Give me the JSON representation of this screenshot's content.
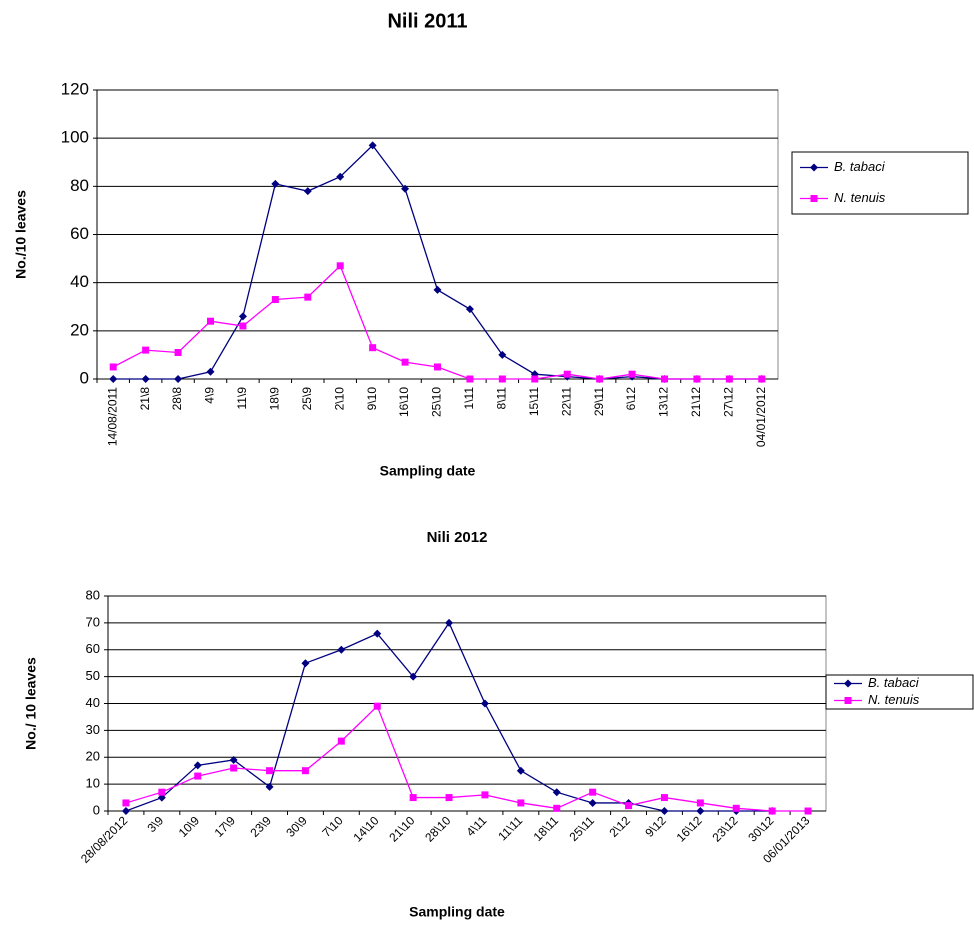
{
  "chart_data": [
    {
      "type": "line",
      "title": "Nili 2011",
      "x_label": "Sampling date",
      "y_label": "No./10 leaves",
      "categories": [
        "14/08/2011",
        "21\\8",
        "28\\8",
        "4\\9",
        "11\\9",
        "18\\9",
        "25\\9",
        "2\\10",
        "9\\10",
        "16\\10",
        "25\\10",
        "1\\11",
        "8\\11",
        "15\\11",
        "22\\11",
        "29\\11",
        "6\\12",
        "13\\12",
        "21\\12",
        "27\\12",
        "04/01/2012"
      ],
      "series": [
        {
          "name": "B. tabaci",
          "color": "#000080",
          "marker": "diamond",
          "values": [
            0,
            0,
            0,
            3,
            26,
            81,
            78,
            84,
            97,
            79,
            37,
            29,
            10,
            2,
            1,
            0,
            1,
            0,
            0,
            0,
            0
          ]
        },
        {
          "name": "N. tenuis",
          "color": "#ff00ff",
          "marker": "square",
          "values": [
            5,
            12,
            11,
            24,
            22,
            33,
            34,
            47,
            13,
            7,
            5,
            0,
            0,
            0,
            2,
            0,
            2,
            0,
            0,
            0,
            0
          ]
        }
      ],
      "ylim": [
        0,
        120
      ],
      "yticks": [
        0,
        20,
        40,
        60,
        80,
        100,
        120
      ],
      "grid": true,
      "legend": "right"
    },
    {
      "type": "line",
      "title": "Nili 2012",
      "x_label": "Sampling date",
      "y_label": "No./ 10 leaves",
      "categories": [
        "28/08/2012",
        "3\\9",
        "10\\9",
        "17\\9",
        "23\\9",
        "30\\9",
        "7\\10",
        "14\\10",
        "21\\10",
        "28\\10",
        "4\\11",
        "11\\11",
        "18\\11",
        "25\\11",
        "2\\12",
        "9\\12",
        "16\\12",
        "23\\12",
        "30\\12",
        "06/01/2013"
      ],
      "series": [
        {
          "name": "B. tabaci",
          "color": "#000080",
          "marker": "diamond",
          "values": [
            0,
            5,
            17,
            19,
            9,
            55,
            60,
            66,
            50,
            70,
            40,
            15,
            7,
            3,
            3,
            0,
            0,
            0,
            0,
            null
          ]
        },
        {
          "name": "N. tenuis",
          "color": "#ff00ff",
          "marker": "square",
          "values": [
            3,
            7,
            13,
            16,
            15,
            15,
            26,
            39,
            5,
            5,
            6,
            3,
            1,
            7,
            2,
            5,
            3,
            1,
            0,
            0
          ]
        }
      ],
      "ylim": [
        0,
        80
      ],
      "yticks": [
        0,
        10,
        20,
        30,
        40,
        50,
        60,
        70,
        80
      ],
      "grid": true,
      "legend": "right"
    }
  ]
}
